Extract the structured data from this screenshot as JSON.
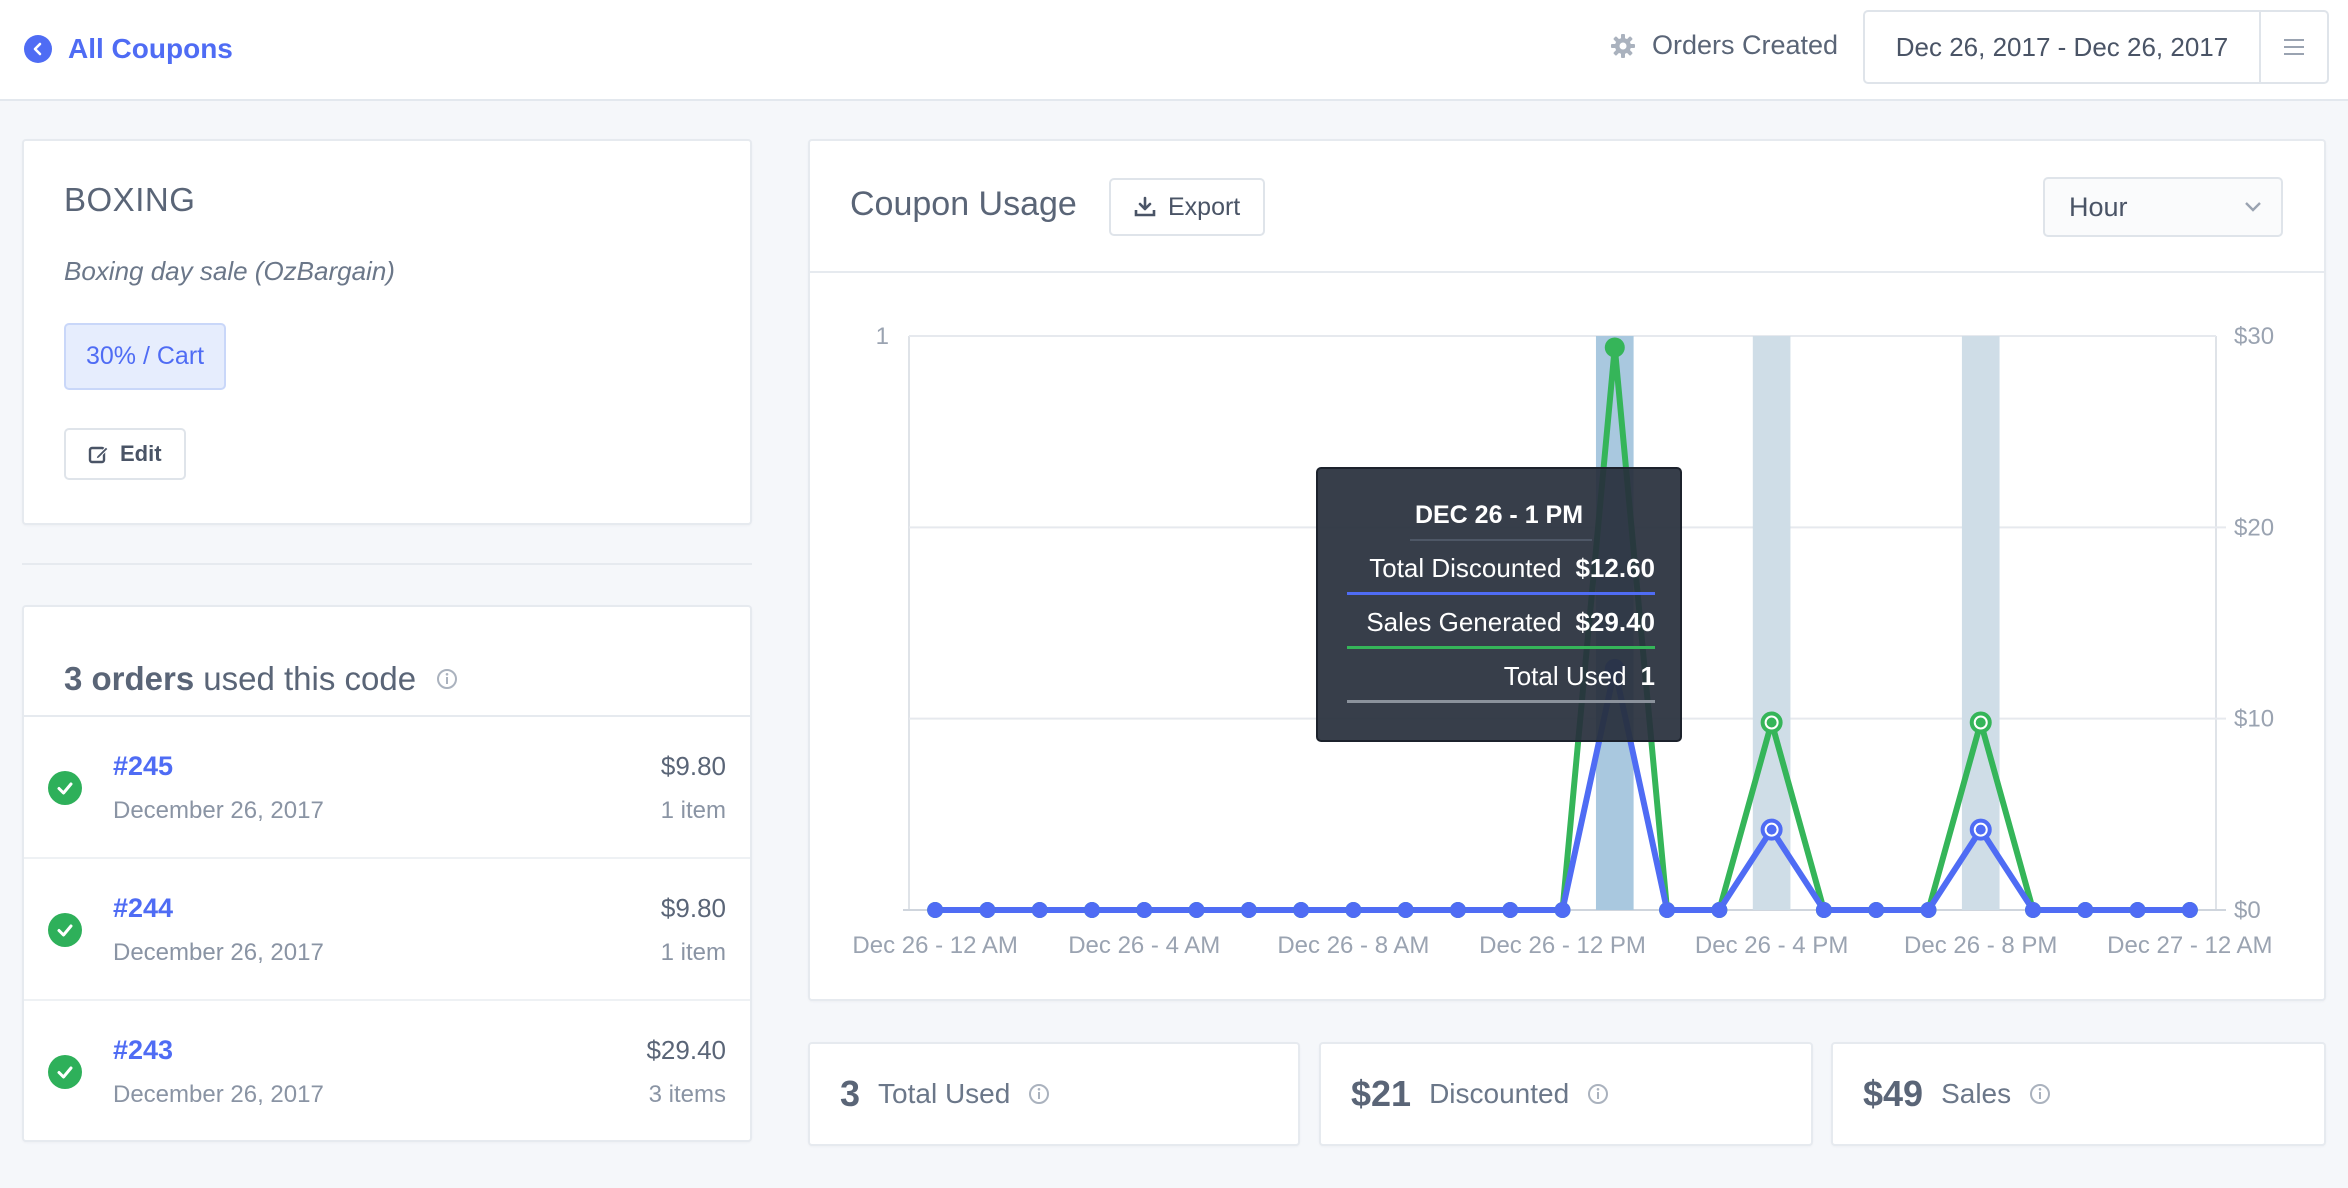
{
  "header": {
    "back_label": "All Coupons",
    "filter_label": "Orders Created",
    "date_range": "Dec 26, 2017 - Dec 26, 2017"
  },
  "coupon": {
    "code": "BOXING",
    "description": "Boxing day sale (OzBargain)",
    "badge": "30% / Cart",
    "edit_label": "Edit"
  },
  "orders": {
    "count_label": "3 orders",
    "suffix": "used this code",
    "items": [
      {
        "id": "#245",
        "date": "December 26, 2017",
        "total": "$9.80",
        "items": "1 item"
      },
      {
        "id": "#244",
        "date": "December 26, 2017",
        "total": "$9.80",
        "items": "1 item"
      },
      {
        "id": "#243",
        "date": "December 26, 2017",
        "total": "$29.40",
        "items": "3 items"
      }
    ]
  },
  "usage": {
    "title": "Coupon Usage",
    "export_label": "Export",
    "period": "Hour"
  },
  "tooltip": {
    "title": "DEC 26 - 1 PM",
    "rows": [
      {
        "label": "Total Discounted",
        "value": "$12.60"
      },
      {
        "label": "Sales Generated",
        "value": "$29.40"
      },
      {
        "label": "Total Used",
        "value": "1"
      }
    ]
  },
  "stats": [
    {
      "value": "3",
      "label": "Total Used"
    },
    {
      "value": "$21",
      "label": "Discounted"
    },
    {
      "value": "$49",
      "label": "Sales"
    }
  ],
  "colors": {
    "accent": "#4f6cf4",
    "discounted": "#4f6cf4",
    "sales": "#35b559",
    "used_bar": "#cfdde7",
    "used_bar_active": "#a9c8df"
  },
  "chart_data": {
    "type": "line",
    "x": [
      "Dec 26 - 12 AM",
      "Dec 26 - 1 AM",
      "Dec 26 - 2 AM",
      "Dec 26 - 3 AM",
      "Dec 26 - 4 AM",
      "Dec 26 - 5 AM",
      "Dec 26 - 6 AM",
      "Dec 26 - 7 AM",
      "Dec 26 - 8 AM",
      "Dec 26 - 9 AM",
      "Dec 26 - 10 AM",
      "Dec 26 - 11 AM",
      "Dec 26 - 12 PM",
      "Dec 26 - 1 PM",
      "Dec 26 - 2 PM",
      "Dec 26 - 3 PM",
      "Dec 26 - 4 PM",
      "Dec 26 - 5 PM",
      "Dec 26 - 6 PM",
      "Dec 26 - 7 PM",
      "Dec 26 - 8 PM",
      "Dec 26 - 9 PM",
      "Dec 26 - 10 PM",
      "Dec 26 - 11 PM",
      "Dec 27 - 12 AM"
    ],
    "xtick_labels": [
      "Dec 26 - 12 AM",
      "Dec 26 - 4 AM",
      "Dec 26 - 8 AM",
      "Dec 26 - 12 PM",
      "Dec 26 - 4 PM",
      "Dec 26 - 8 PM",
      "Dec 27 - 12 AM"
    ],
    "xtick_index": [
      0,
      4,
      8,
      12,
      16,
      20,
      24
    ],
    "series": [
      {
        "name": "Total Used",
        "kind": "bar",
        "axis": "left",
        "values": [
          0,
          0,
          0,
          0,
          0,
          0,
          0,
          0,
          0,
          0,
          0,
          0,
          0,
          1,
          0,
          0,
          1,
          0,
          0,
          0,
          1,
          0,
          0,
          0,
          0
        ]
      },
      {
        "name": "Sales Generated",
        "kind": "line",
        "axis": "right",
        "values": [
          0,
          0,
          0,
          0,
          0,
          0,
          0,
          0,
          0,
          0,
          0,
          0,
          0,
          29.4,
          0,
          0,
          9.8,
          0,
          0,
          0,
          9.8,
          0,
          0,
          0,
          0
        ]
      },
      {
        "name": "Total Discounted",
        "kind": "line",
        "axis": "right",
        "values": [
          0,
          0,
          0,
          0,
          0,
          0,
          0,
          0,
          0,
          0,
          0,
          0,
          0,
          12.6,
          0,
          0,
          4.2,
          0,
          0,
          0,
          4.2,
          0,
          0,
          0,
          0
        ]
      }
    ],
    "y_left": {
      "ticks": [
        "1"
      ],
      "ylim": [
        0,
        1
      ]
    },
    "y_right": {
      "ticks": [
        "$0",
        "$10",
        "$20",
        "$30"
      ],
      "ylim": [
        0,
        30
      ]
    },
    "active_index": 13,
    "grid": true
  }
}
